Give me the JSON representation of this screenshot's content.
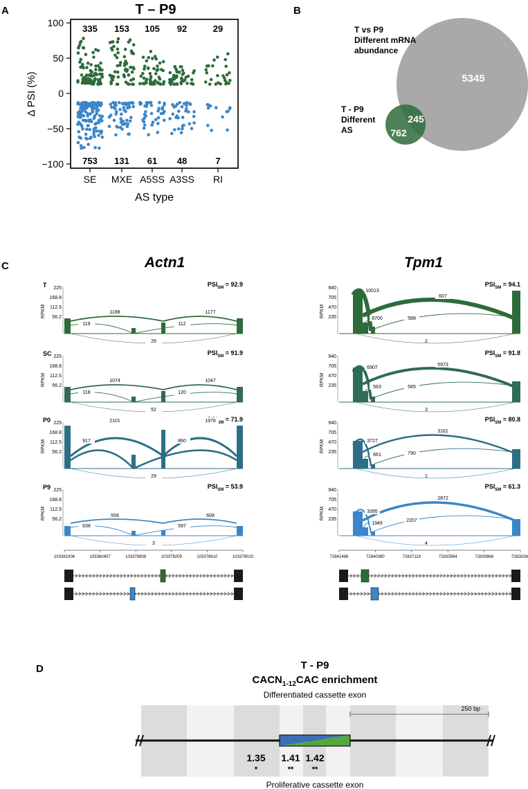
{
  "colors": {
    "green": "#2e6b3a",
    "blue": "#3a86c8",
    "teal": "#2d6e86",
    "gray": "#a9a9a9",
    "dark": "#1a1a1a"
  },
  "panel_a": {
    "letter": "A",
    "title": "T – P9",
    "xlabel": "AS type",
    "ylabel": "Δ PSI (%)",
    "yticks": [
      "100",
      "50",
      "0",
      "−50",
      "−100"
    ],
    "categories": [
      "SE",
      "MXE",
      "A5SS",
      "A3SS",
      "RI"
    ],
    "up_counts": [
      "335",
      "153",
      "105",
      "92",
      "29"
    ],
    "down_counts": [
      "753",
      "131",
      "61",
      "48",
      "7"
    ]
  },
  "chart_data": {
    "type": "scatter",
    "title": "T – P9",
    "xlabel": "AS type",
    "ylabel": "Δ PSI (%)",
    "ylim": [
      -100,
      100
    ],
    "categories": [
      "SE",
      "MXE",
      "A5SS",
      "A3SS",
      "RI"
    ],
    "series": [
      {
        "up_count": 335,
        "up_range": [
          13,
          80
        ],
        "down_count": 753,
        "down_range": [
          -13,
          -78
        ]
      },
      {
        "up_count": 153,
        "up_range": [
          13,
          80
        ],
        "down_count": 131,
        "down_range": [
          -13,
          -60
        ]
      },
      {
        "up_count": 105,
        "up_range": [
          13,
          60
        ],
        "down_count": 61,
        "down_range": [
          -13,
          -60
        ]
      },
      {
        "up_count": 92,
        "up_range": [
          13,
          38
        ],
        "down_count": 48,
        "down_range": [
          -13,
          -60
        ]
      },
      {
        "up_count": 29,
        "up_range": [
          13,
          57
        ],
        "down_count": 7,
        "down_range": [
          -13,
          -55
        ]
      }
    ]
  },
  "panel_b": {
    "letter": "B",
    "big_label": [
      "T vs P9",
      "Different mRNA",
      "abundance"
    ],
    "small_label": [
      "T - P9",
      "Different",
      "AS"
    ],
    "big_only": "5345",
    "overlap": "245",
    "small_only": "762"
  },
  "panel_c": {
    "letter": "C",
    "genes": [
      {
        "name": "Actn1",
        "color_up": "#2e6b3a",
        "yticks": [
          "225",
          "168.8",
          "112.5",
          "56.2"
        ],
        "coords": [
          "103381006",
          "103380407",
          "103379808",
          "103379209",
          "103378610",
          "103378010"
        ],
        "tracks": [
          {
            "label": "T",
            "psi": "92.9",
            "color": "#2e6b3a",
            "top": [
              "1188",
              "1177"
            ],
            "mid": [
              "119",
              "112"
            ],
            "bottom": "26"
          },
          {
            "label": "SC",
            "psi": "91.9",
            "color": "#2f6b55",
            "top": [
              "1074",
              "1047"
            ],
            "mid": [
              "118",
              "120"
            ],
            "bottom": "52"
          },
          {
            "label": "P0",
            "psi": "71.9",
            "color": "#2d6e86",
            "top": [
              "2101",
              "1978"
            ],
            "mid": [
              "917",
              "860"
            ],
            "bottom": "29"
          },
          {
            "label": "P9",
            "psi": "53.9",
            "color": "#3a86c8",
            "top": [
              "558",
              "608"
            ],
            "mid": [
              "638",
              "597"
            ],
            "bottom": "3"
          }
        ]
      },
      {
        "name": "Tpm1",
        "color_up": "#2e6b3a",
        "yticks": [
          "940",
          "705",
          "470",
          "235"
        ],
        "coords": [
          "72841496",
          "72840080",
          "72837119",
          "72833994",
          "72830868",
          "72828266"
        ],
        "tracks": [
          {
            "label": "",
            "psi": "94.1",
            "color": "#2e6b3a",
            "labels": [
              "10013",
              "8700",
              "607",
              "588"
            ],
            "bottom": "2"
          },
          {
            "label": "",
            "psi": "91.8",
            "color": "#2f6b55",
            "labels": [
              "6907",
              "563",
              "5973",
              "565"
            ],
            "bottom": "3"
          },
          {
            "label": "",
            "psi": "80.8",
            "color": "#2d6e86",
            "labels": [
              "3727",
              "661",
              "3161",
              "790"
            ],
            "bottom": "1"
          },
          {
            "label": "",
            "psi": "61.3",
            "color": "#3a86c8",
            "labels": [
              "3395",
              "1949",
              "2872",
              "2207"
            ],
            "bottom": "4"
          }
        ]
      }
    ],
    "psi_prefix": "PSI",
    "psi_sub": "SM",
    "ylabel": "RPKM"
  },
  "panel_d": {
    "letter": "D",
    "title": "T - P9",
    "subtitle_pre": "CACN",
    "subtitle_sub": "1-12",
    "subtitle_post": "CAC enrichment",
    "top_label": "Differentiated cassette exon",
    "bottom_label": "Proliferative cassette exon",
    "scale": "250 bp",
    "values": [
      "1.35",
      "1.41",
      "1.42"
    ],
    "stars": [
      "*",
      "**",
      "**"
    ]
  }
}
